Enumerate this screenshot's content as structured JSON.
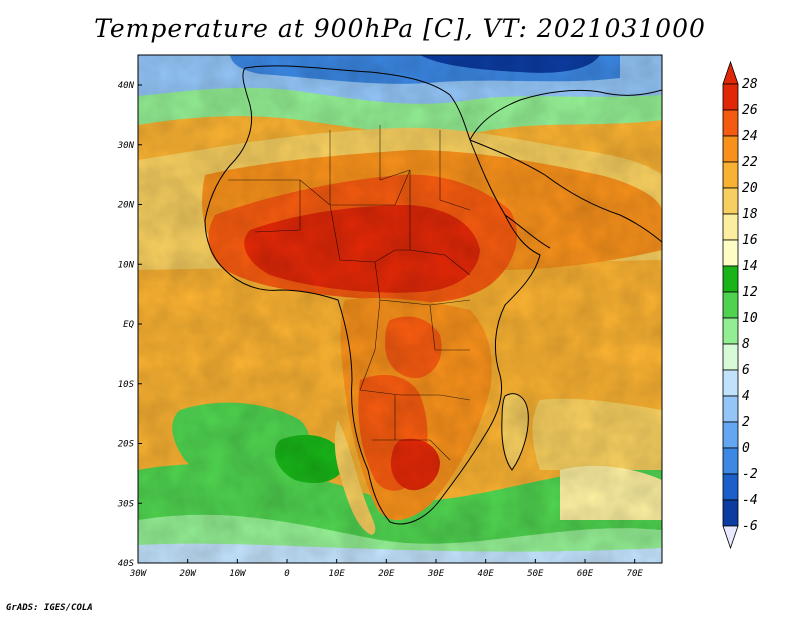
{
  "title": "Temperature at 900hPa [C], VT: 2021031000",
  "credit": "GrADS: IGES/COLA",
  "map": {
    "lon_labels": [
      "30W",
      "20W",
      "10W",
      "0",
      "10E",
      "20E",
      "30E",
      "40E",
      "50E",
      "60E",
      "70E"
    ],
    "lat_labels": [
      "40N",
      "30N",
      "20N",
      "10N",
      "EQ",
      "10S",
      "20S",
      "30S",
      "40S"
    ]
  },
  "colorbar": {
    "labels": [
      "28",
      "26",
      "24",
      "22",
      "20",
      "18",
      "16",
      "14",
      "12",
      "10",
      "8",
      "6",
      "4",
      "2",
      "0",
      "-2",
      "-4",
      "-6"
    ],
    "colors": [
      "#e02808",
      "#f55b10",
      "#f7911c",
      "#f8b132",
      "#f7cf60",
      "#fbeea0",
      "#fefec4",
      "#18b418",
      "#4fd24f",
      "#93ee93",
      "#d6fbd6",
      "#c2e2fc",
      "#93c5f7",
      "#64a7f0",
      "#3c88e4",
      "#1c5fc8",
      "#0c3ca0",
      "#081a78"
    ]
  }
}
